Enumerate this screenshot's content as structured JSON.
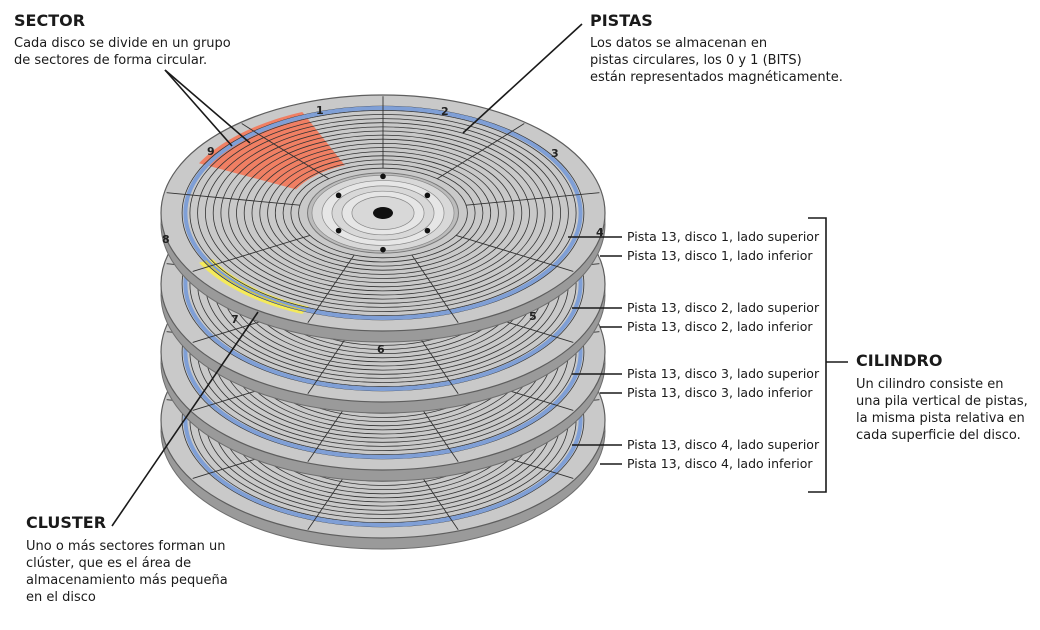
{
  "sector": {
    "title": "SECTOR",
    "lines": [
      "Cada disco se divide en un grupo",
      "de sectores de forma circular."
    ]
  },
  "pistas": {
    "title": "PISTAS",
    "lines": [
      "Los datos se almacenan en",
      "pistas circulares, los 0 y 1 (BITS)",
      "están representados magnéticamente."
    ]
  },
  "cluster": {
    "title": "CLUSTER",
    "lines": [
      "Uno o más sectores forman un",
      "clúster, que es el área de",
      "almacenamiento más pequeña",
      "en el disco"
    ]
  },
  "cilindro": {
    "title": "CILINDRO",
    "lines": [
      "Un cilindro consiste en",
      "una pila vertical de pistas,",
      "la misma pista relativa en",
      "cada superficie del disco."
    ]
  },
  "track_labels": [
    "Pista 13, disco 1, lado superior",
    "Pista 13, disco 1, lado inferior",
    "Pista 13, disco 2, lado superior",
    "Pista 13, disco 2, lado inferior",
    "Pista 13, disco 3, lado superior",
    "Pista 13, disco 3, lado inferior",
    "Pista 13, disco 4, lado superior",
    "Pista 13, disco 4, lado inferior"
  ],
  "sector_numbers": [
    "1",
    "2",
    "3",
    "4",
    "5",
    "6",
    "7",
    "8",
    "9"
  ],
  "colors": {
    "platter": "#c9c9c9",
    "platter_edge": "#9a9a9a",
    "track_line": "#333333",
    "highlight_track": "#7f9fd6",
    "sector_fill": "#f07f63",
    "cluster_fill": "#f4ea5a",
    "hub": "#d8d8d8"
  }
}
